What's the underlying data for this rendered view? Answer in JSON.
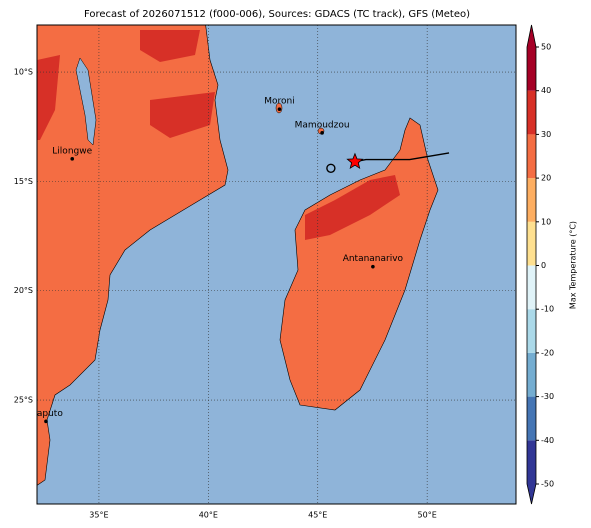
{
  "map": {
    "title": "Forecast of 2026071512 (f000-006), Sources: GDACS (TC track), GFS (Meteo)",
    "xlim": [
      32.17,
      54.06
    ],
    "ylim": [
      -29.75,
      -7.85
    ],
    "xticks": [
      {
        "value": 35,
        "label": "35°E"
      },
      {
        "value": 40,
        "label": "40°E"
      },
      {
        "value": 45,
        "label": "45°E"
      },
      {
        "value": 50,
        "label": "50°E"
      }
    ],
    "yticks": [
      {
        "value": -10,
        "label": "10°S"
      },
      {
        "value": -15,
        "label": "15°S"
      },
      {
        "value": -20,
        "label": "20°S"
      },
      {
        "value": -25,
        "label": "25°S"
      }
    ],
    "grid": true,
    "cities": [
      {
        "name": "Moroni",
        "lon": 43.25,
        "lat": -11.7
      },
      {
        "name": "Mamoudzou",
        "lon": 45.2,
        "lat": -12.78
      },
      {
        "name": "Lilongwe",
        "lon": 33.78,
        "lat": -13.97
      },
      {
        "name": "Antananarivo",
        "lon": 47.52,
        "lat": -18.9
      },
      {
        "name": "Maputo",
        "lon": 32.58,
        "lat": -25.97
      }
    ],
    "track": {
      "lon": [
        46.7,
        47.2,
        49.2,
        51.0
      ],
      "lat": [
        -14.1,
        -14.0,
        -14.0,
        -13.7
      ],
      "color": "#000000"
    },
    "current_position": {
      "lon": 46.7,
      "lat": -14.1,
      "color": "#ff0000"
    },
    "previous_position": {
      "lon": 45.6,
      "lat": -14.4
    },
    "colorbar": {
      "label": "Max Temperature (°C)",
      "lim": [
        -50,
        50
      ],
      "ticks": [
        -50,
        -40,
        -30,
        -20,
        -10,
        0,
        10,
        20,
        30,
        40,
        50
      ],
      "colors": [
        "#313695",
        "#4575b4",
        "#74add1",
        "#abd9e9",
        "#e0f3f8",
        "#fee090",
        "#fdae61",
        "#f46d43",
        "#d73027",
        "#a50026"
      ]
    }
  }
}
